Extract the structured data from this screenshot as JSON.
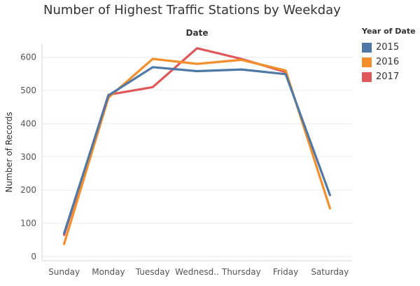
{
  "chart_data": {
    "type": "line",
    "title": "Number of Highest Traffic Stations by Weekday",
    "subtitle": "Date",
    "xlabel": "",
    "ylabel": "Number of Records",
    "categories": [
      "Sunday",
      "Monday",
      "Tuesday",
      "Wednesd..",
      "Thursday",
      "Friday",
      "Saturday"
    ],
    "yticks": [
      0,
      100,
      200,
      300,
      400,
      500,
      600
    ],
    "ylim": [
      0,
      660
    ],
    "grid": true,
    "legend": {
      "title": "Year of Date",
      "placement": "right"
    },
    "series": [
      {
        "name": "2015",
        "color": "#4e79a7",
        "values": [
          70,
          485,
          570,
          558,
          563,
          549,
          185
        ]
      },
      {
        "name": "2016",
        "color": "#f28e2b",
        "values": [
          38,
          478,
          595,
          580,
          592,
          560,
          145
        ]
      },
      {
        "name": "2017",
        "color": "#e15759",
        "values": [
          65,
          487,
          510,
          627,
          595,
          555,
          null
        ]
      }
    ]
  }
}
